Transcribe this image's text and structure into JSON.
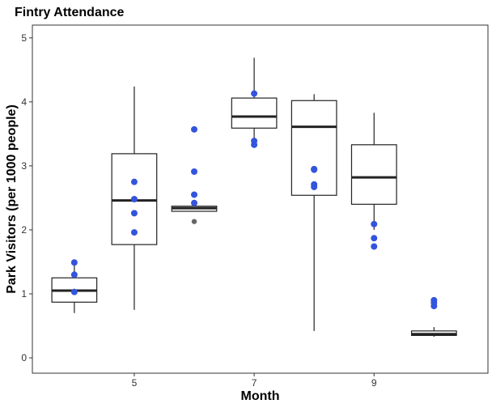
{
  "chart_data": {
    "type": "boxplot",
    "title": "Fintry Attendance",
    "xlabel": "Month",
    "ylabel": "Park Visitors (per 1000 people)",
    "xlim": [
      3.3,
      10.9
    ],
    "ylim": [
      -0.24,
      5.2
    ],
    "x_ticks": [
      5,
      7,
      9
    ],
    "y_ticks": [
      0,
      1,
      2,
      3,
      4,
      5
    ],
    "grid": false,
    "box_color": "#222222",
    "point_color": "#3355dd",
    "outlier_color": "#666666",
    "boxes": [
      {
        "x": 4,
        "whisker_low": 0.7,
        "q1": 0.87,
        "median": 1.05,
        "q3": 1.25,
        "whisker_high": 1.45
      },
      {
        "x": 5,
        "whisker_low": 0.75,
        "q1": 1.77,
        "median": 2.46,
        "q3": 3.19,
        "whisker_high": 4.24
      },
      {
        "x": 6,
        "whisker_low": 2.29,
        "q1": 2.29,
        "median": 2.34,
        "q3": 2.37,
        "whisker_high": 2.37
      },
      {
        "x": 7,
        "whisker_low": 3.33,
        "q1": 3.59,
        "median": 3.77,
        "q3": 4.06,
        "whisker_high": 4.69
      },
      {
        "x": 8,
        "whisker_low": 0.42,
        "q1": 2.54,
        "median": 3.61,
        "q3": 4.02,
        "whisker_high": 4.12
      },
      {
        "x": 9,
        "whisker_low": 2.0,
        "q1": 2.4,
        "median": 2.82,
        "q3": 3.33,
        "whisker_high": 3.83
      },
      {
        "x": 10,
        "whisker_low": 0.33,
        "q1": 0.35,
        "median": 0.37,
        "q3": 0.42,
        "whisker_high": 0.48
      }
    ],
    "outliers": [
      {
        "x": 6,
        "y": 2.13
      }
    ],
    "points": [
      {
        "x": 4,
        "y": 1.49
      },
      {
        "x": 4,
        "y": 1.3
      },
      {
        "x": 4,
        "y": 1.03
      },
      {
        "x": 5,
        "y": 2.75
      },
      {
        "x": 5,
        "y": 2.48
      },
      {
        "x": 5,
        "y": 2.26
      },
      {
        "x": 5,
        "y": 1.96
      },
      {
        "x": 6,
        "y": 3.57
      },
      {
        "x": 6,
        "y": 2.91
      },
      {
        "x": 6,
        "y": 2.55
      },
      {
        "x": 6,
        "y": 2.42
      },
      {
        "x": 7,
        "y": 4.13
      },
      {
        "x": 7,
        "y": 3.39
      },
      {
        "x": 7,
        "y": 3.33
      },
      {
        "x": 8,
        "y": 2.95
      },
      {
        "x": 8,
        "y": 2.94
      },
      {
        "x": 8,
        "y": 2.71
      },
      {
        "x": 8,
        "y": 2.67
      },
      {
        "x": 9,
        "y": 2.09
      },
      {
        "x": 9,
        "y": 1.87
      },
      {
        "x": 9,
        "y": 1.74
      },
      {
        "x": 10,
        "y": 0.9
      },
      {
        "x": 10,
        "y": 0.86
      },
      {
        "x": 10,
        "y": 0.81
      }
    ]
  }
}
